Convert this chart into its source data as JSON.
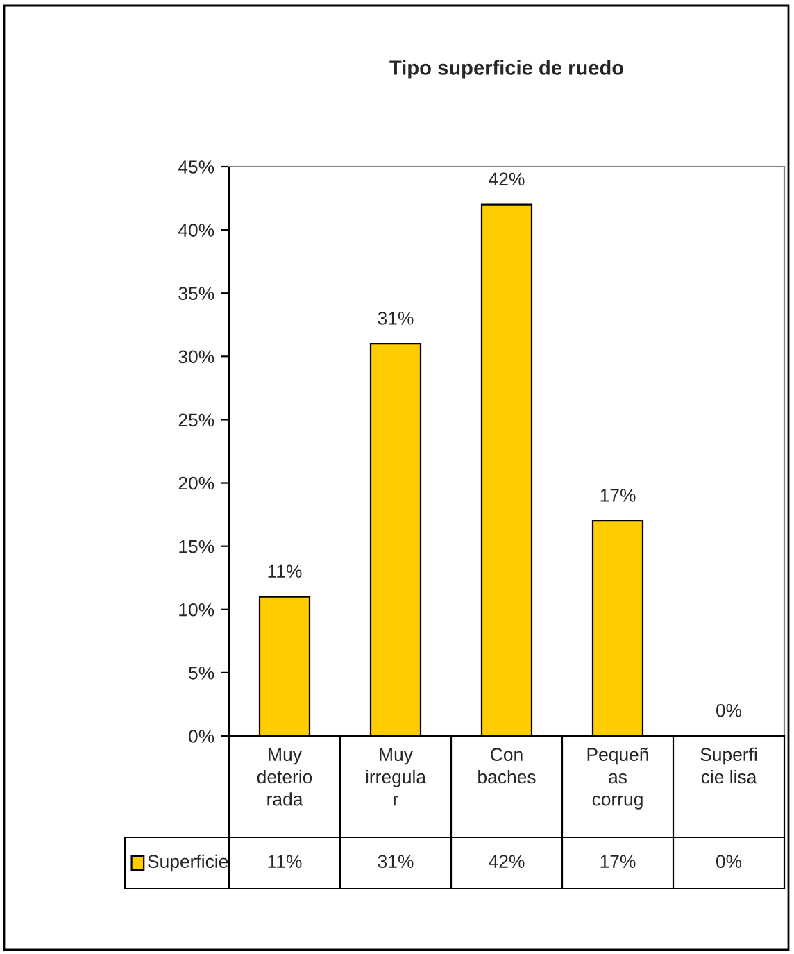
{
  "chart_data": {
    "type": "bar",
    "title": "Tipo superficie de ruedo",
    "categories": [
      "Muy\ndeterio\nrada",
      "Muy\nirregula\nr",
      "Con\nbaches",
      "Pequeñ\nas\ncorrug",
      "Superfi\ncie lisa"
    ],
    "series": [
      {
        "name": "Superficie",
        "color": "#ffcc00",
        "values": [
          11,
          31,
          42,
          17,
          0
        ],
        "value_labels": [
          "11%",
          "31%",
          "42%",
          "17%",
          "0%"
        ]
      }
    ],
    "ylim": [
      0,
      45
    ],
    "yticks": [
      {
        "value": 0,
        "label": "0%"
      },
      {
        "value": 5,
        "label": "5%"
      },
      {
        "value": 10,
        "label": "10%"
      },
      {
        "value": 15,
        "label": "15%"
      },
      {
        "value": 20,
        "label": "20%"
      },
      {
        "value": 25,
        "label": "25%"
      },
      {
        "value": 30,
        "label": "30%"
      },
      {
        "value": 35,
        "label": "35%"
      },
      {
        "value": 40,
        "label": "40%"
      },
      {
        "value": 45,
        "label": "45%"
      }
    ],
    "grid": false,
    "legend": "bottom left"
  }
}
